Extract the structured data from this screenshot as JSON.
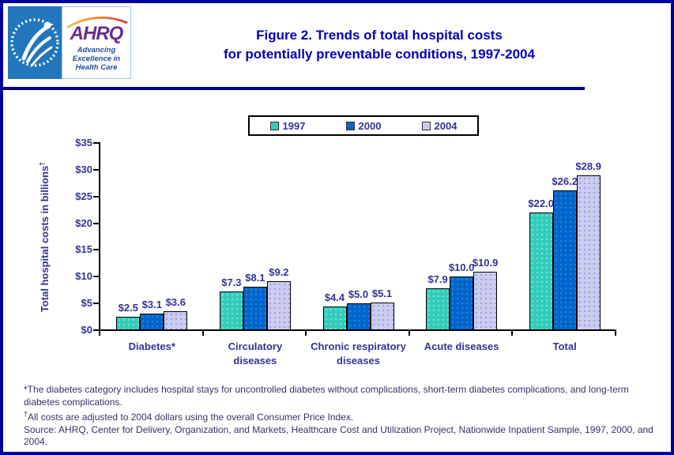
{
  "header": {
    "title_line1": "Figure 2. Trends of total hospital costs",
    "title_line2": "for potentially preventable conditions, 1997-2004",
    "logo": {
      "ahrq_acronym": "AHRQ",
      "tagline_line1": "Advancing",
      "tagline_line2": "Excellence in",
      "tagline_line3": "Health Care"
    }
  },
  "chart_data": {
    "type": "bar",
    "categories": [
      "Diabetes*",
      "Circulatory\ndiseases",
      "Chronic respiratory\ndiseases",
      "Acute diseases",
      "Total"
    ],
    "series": [
      {
        "name": "1997",
        "color": "#33CCBB",
        "dot_color": "#7FE4D6",
        "values": [
          2.5,
          7.3,
          4.4,
          7.9,
          22.0
        ]
      },
      {
        "name": "2000",
        "color": "#0066CC",
        "dot_color": "#2E85DB",
        "values": [
          3.1,
          8.1,
          5.0,
          10.0,
          26.2
        ]
      },
      {
        "name": "2004",
        "color": "#CCCCF0",
        "dot_color": "#9C9CDD",
        "values": [
          3.6,
          9.2,
          5.1,
          10.9,
          28.9
        ]
      }
    ],
    "ylabel_text": "Total hospital costs in billions",
    "ylabel_sup": "†",
    "y_ticks": [
      "$0",
      "$5",
      "$10",
      "$15",
      "$20",
      "$25",
      "$30",
      "$35"
    ],
    "ylim": [
      0,
      35
    ],
    "value_prefix": "$",
    "value_decimals": 1,
    "legend_position": "top-center",
    "grid": false
  },
  "footnotes": {
    "note1": "*The diabetes category includes hospital stays for uncontrolled diabetes without complications, short-term diabetes complications, and long-term diabetes complications.",
    "note2_sup": "†",
    "note2_text": "All costs are adjusted to 2004 dollars using the overall Consumer Price Index.",
    "source": "Source: AHRQ, Center for Delivery, Organization, and Markets, Healthcare Cost and Utilization Project, Nationwide Inpatient Sample, 1997, 2000, and 2004."
  },
  "colors": {
    "outer_border": "#000099",
    "title_text": "#0000BB",
    "chart_text": "#333399",
    "footnote_text": "#333366",
    "hhs_logo_blue": "#2176BC",
    "ahrq_purple": "#6B2C91"
  }
}
